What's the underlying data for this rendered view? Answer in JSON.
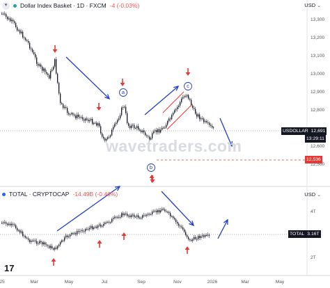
{
  "main_pane": {
    "symbol_title": "Dollar Index Basket · 1D · FXCM",
    "change": "-4 (-0.03%)",
    "currency": "USD",
    "y_ticks": [
      "13,300",
      "13,200",
      "13,100",
      "13,000",
      "12,900",
      "12,800",
      "12,600",
      "12,500"
    ],
    "price_tag": {
      "label": "USDOLLAR",
      "value": "12,691",
      "countdown": "13:29:11"
    },
    "support_tag": {
      "value": "12,536"
    },
    "wave_labels": [
      "a",
      "b",
      "c"
    ],
    "watermark": "wavetraders.com",
    "colors": {
      "up": "#26a69a",
      "down": "#ef5350",
      "arrow_red": "#e53935",
      "line_blue": "#1e3cc8",
      "price_tag_bg": "#131722",
      "support_bg": "#e53935"
    }
  },
  "lower_pane": {
    "symbol_title": "TOTAL · CRYPTOCAP",
    "change": "-14.49B (-0.46%)",
    "currency": "USD",
    "y_ticks": [
      "4T",
      "3T",
      "2T"
    ],
    "price_tag": {
      "label": "TOTAL",
      "value": "3.16T"
    }
  },
  "x_axis": [
    "25",
    "Mar",
    "May",
    "Jul",
    "Sep",
    "Nov",
    "2026",
    "Mar",
    "May"
  ],
  "logo": "17",
  "icons": [
    "collapse-chevron-icon",
    "tradingview-logo-icon"
  ]
}
